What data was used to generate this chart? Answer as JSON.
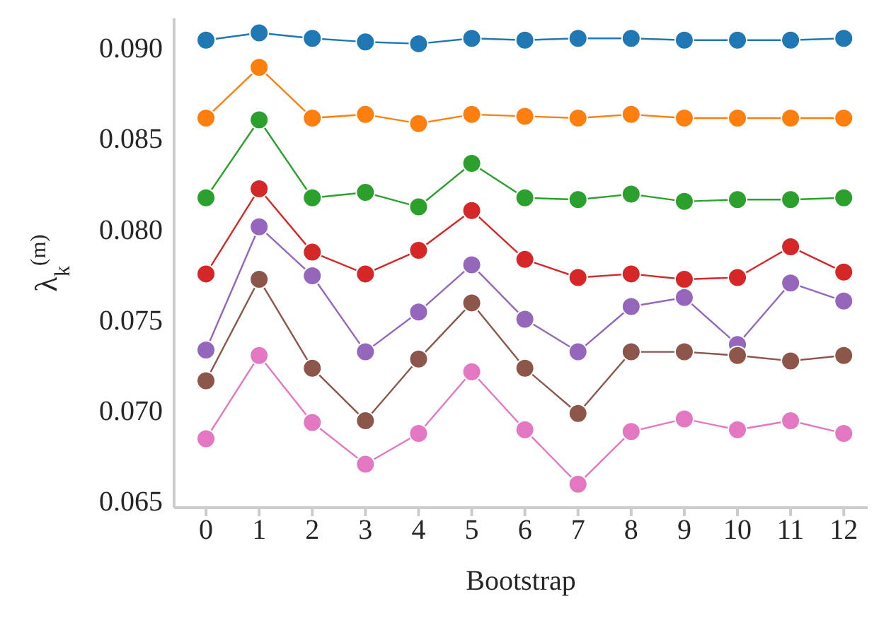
{
  "chart_data": {
    "type": "line",
    "xlabel": "Bootstrap",
    "ylabel": "λ$_{k}$$^{(m)}$",
    "x": [
      0,
      1,
      2,
      3,
      4,
      5,
      6,
      7,
      8,
      9,
      10,
      11,
      12
    ],
    "series": [
      {
        "color": "#1f77b4",
        "values": [
          0.0904,
          0.0908,
          0.0905,
          0.0903,
          0.0902,
          0.0905,
          0.0904,
          0.0905,
          0.0905,
          0.0904,
          0.0904,
          0.0904,
          0.0905
        ]
      },
      {
        "color": "#ff7f0e",
        "values": [
          0.0861,
          0.0889,
          0.0861,
          0.0863,
          0.0858,
          0.0863,
          0.0862,
          0.0861,
          0.0863,
          0.0861,
          0.0861,
          0.0861,
          0.0861
        ]
      },
      {
        "color": "#2ca02c",
        "values": [
          0.0817,
          0.086,
          0.0817,
          0.082,
          0.0812,
          0.0836,
          0.0817,
          0.0816,
          0.0819,
          0.0815,
          0.0816,
          0.0816,
          0.0817
        ]
      },
      {
        "color": "#d62728",
        "values": [
          0.0775,
          0.0822,
          0.0787,
          0.0775,
          0.0788,
          0.081,
          0.0783,
          0.0773,
          0.0775,
          0.0772,
          0.0773,
          0.079,
          0.0776
        ]
      },
      {
        "color": "#9467bd",
        "values": [
          0.0733,
          0.0801,
          0.0774,
          0.0732,
          0.0754,
          0.078,
          0.075,
          0.0732,
          0.0757,
          0.0762,
          0.0736,
          0.077,
          0.076
        ]
      },
      {
        "color": "#8c564b",
        "values": [
          0.0716,
          0.0772,
          0.0723,
          0.0694,
          0.0728,
          0.0759,
          0.0723,
          0.0698,
          0.0732,
          0.0732,
          0.073,
          0.0727,
          0.073
        ]
      },
      {
        "color": "#e377c2",
        "values": [
          0.0684,
          0.073,
          0.0693,
          0.067,
          0.0687,
          0.0721,
          0.0689,
          0.0659,
          0.0688,
          0.0695,
          0.0689,
          0.0694,
          0.0687
        ]
      }
    ],
    "xlim": [
      -0.6,
      12.45
    ],
    "xticks": [
      0,
      1,
      2,
      3,
      4,
      5,
      6,
      7,
      8,
      9,
      10,
      11,
      12
    ],
    "ylim": [
      0.0646,
      0.0916
    ],
    "yticks": [
      {
        "value": 0.065,
        "label": "0.065"
      },
      {
        "value": 0.07,
        "label": "0.070"
      },
      {
        "value": 0.075,
        "label": "0.075"
      },
      {
        "value": 0.08,
        "label": "0.080"
      },
      {
        "value": 0.085,
        "label": "0.085"
      },
      {
        "value": 0.09,
        "label": "0.090"
      }
    ],
    "grid": false,
    "legend": false,
    "marker": "circle",
    "line_style": "solid"
  }
}
